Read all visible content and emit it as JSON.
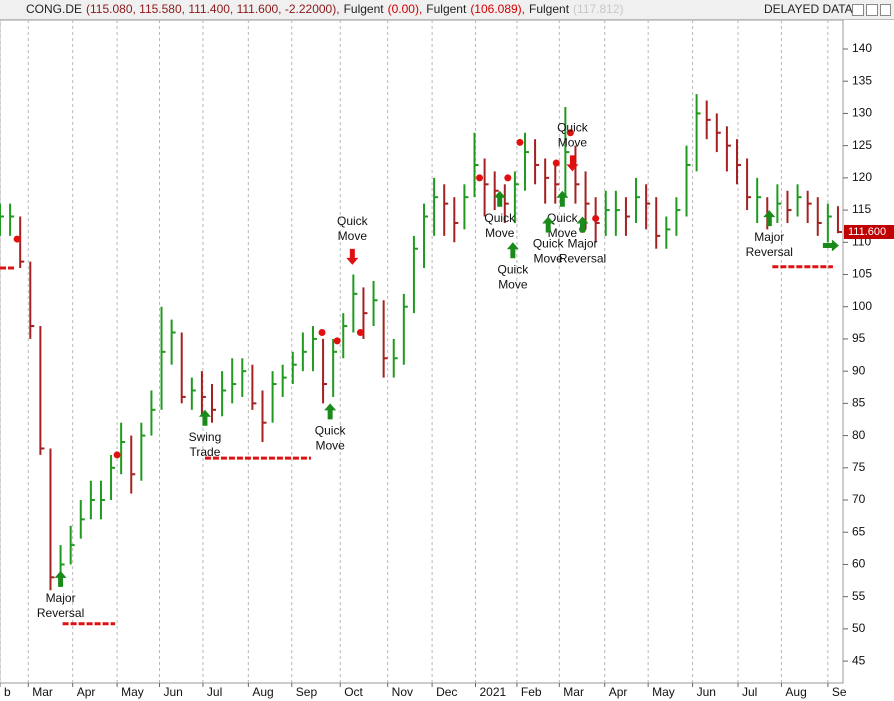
{
  "chart_data": {
    "type": "ohlc",
    "header": [
      {
        "text": "CONG.DE",
        "color": "#222222"
      },
      {
        "text": "(115.080, 115.580, 111.400, 111.600, -2.22000),",
        "color": "#8b1a1a"
      },
      {
        "text": "Fulgent",
        "color": "#222222"
      },
      {
        "text": "(0.00),",
        "color": "#d00000"
      },
      {
        "text": "Fulgent",
        "color": "#222222"
      },
      {
        "text": "(106.089),",
        "color": "#d00000"
      },
      {
        "text": "Fulgent",
        "color": "#222222"
      },
      {
        "text": "(117.812)",
        "color": "#c8c8c8"
      }
    ],
    "status": "DELAYED DATA",
    "x": [
      0,
      1,
      2,
      3,
      4,
      5,
      6,
      7,
      8,
      9,
      10,
      11,
      12,
      13,
      14,
      15,
      16,
      17,
      18,
      19,
      20,
      21,
      22,
      23,
      24,
      25,
      26,
      27,
      28,
      29,
      30,
      31,
      32,
      33,
      34,
      35,
      36,
      37,
      38,
      39,
      40,
      41,
      42,
      43,
      44,
      45,
      46,
      47,
      48,
      49,
      50,
      51,
      52,
      53,
      54,
      55,
      56,
      57,
      58,
      59,
      60,
      61,
      62,
      63,
      64,
      65,
      66,
      67,
      68,
      69,
      70,
      71,
      72,
      73,
      74,
      75,
      76,
      77,
      78,
      79,
      80,
      81,
      82,
      83
    ],
    "close": [
      114,
      114,
      107,
      97,
      78,
      58,
      60,
      63,
      67,
      70,
      70,
      75,
      79,
      74,
      80,
      84,
      93,
      96,
      86,
      87,
      86,
      84,
      87,
      88,
      90,
      85,
      82,
      88,
      89,
      91,
      93,
      95,
      88,
      93,
      97,
      102,
      99,
      101,
      92,
      92,
      100,
      109,
      114,
      117,
      116,
      113,
      117,
      122,
      119,
      118,
      116,
      119,
      124,
      122,
      120,
      119,
      124,
      119,
      116,
      113,
      115,
      115,
      114,
      117,
      116,
      111,
      112,
      115,
      122,
      130,
      129,
      127,
      125,
      122,
      117,
      117,
      114,
      116,
      115,
      117,
      116,
      113,
      114,
      111.6
    ],
    "high": [
      116,
      116,
      114,
      107,
      97,
      78,
      63,
      66,
      70,
      73,
      73,
      77,
      82,
      80,
      82,
      87,
      100,
      98,
      96,
      89,
      90,
      88,
      90,
      92,
      92,
      91,
      87,
      90,
      91,
      93,
      96,
      97,
      95,
      95,
      99,
      105,
      103,
      104,
      101,
      95,
      102,
      111,
      116,
      120,
      119,
      117,
      119,
      127,
      123,
      121,
      119,
      121,
      127,
      126,
      123,
      122,
      131,
      125,
      121,
      117,
      118,
      118,
      117,
      120,
      119,
      117,
      114,
      117,
      125,
      133,
      132,
      130,
      128,
      126,
      123,
      120,
      117,
      119,
      118,
      119,
      118,
      117,
      116,
      115.6
    ],
    "low": [
      111,
      111,
      106,
      95,
      77,
      56,
      57,
      60,
      64,
      67,
      67,
      70,
      74,
      71,
      73,
      80,
      84,
      91,
      85,
      84,
      83,
      82,
      83,
      85,
      86,
      84,
      79,
      82,
      86,
      88,
      90,
      90,
      85,
      86,
      92,
      96,
      95,
      97,
      89,
      89,
      91,
      99,
      106,
      111,
      111,
      110,
      112,
      117,
      114,
      115,
      113,
      113,
      118,
      119,
      116,
      116,
      117,
      116,
      112,
      110,
      111,
      111,
      111,
      113,
      112,
      109,
      109,
      111,
      114,
      121,
      126,
      124,
      121,
      119,
      115,
      113,
      112,
      113,
      113,
      114,
      113,
      111,
      110,
      111.4
    ],
    "up_color": "#1f9a1f",
    "down_color": "#a52020",
    "xlim": [
      0,
      83.5
    ],
    "xticks": [
      {
        "value": 0,
        "label": "b"
      },
      {
        "value": 2.8,
        "label": "Mar"
      },
      {
        "value": 7.2,
        "label": "Apr"
      },
      {
        "value": 11.6,
        "label": "May"
      },
      {
        "value": 15.8,
        "label": "Jun"
      },
      {
        "value": 20.1,
        "label": "Jul"
      },
      {
        "value": 24.6,
        "label": "Aug"
      },
      {
        "value": 28.9,
        "label": "Sep"
      },
      {
        "value": 33.7,
        "label": "Oct"
      },
      {
        "value": 38.4,
        "label": "Nov"
      },
      {
        "value": 42.8,
        "label": "Dec"
      },
      {
        "value": 47.1,
        "label": "2021"
      },
      {
        "value": 51.2,
        "label": "Feb"
      },
      {
        "value": 55.4,
        "label": "Mar"
      },
      {
        "value": 59.9,
        "label": "Apr"
      },
      {
        "value": 64.2,
        "label": "May"
      },
      {
        "value": 68.6,
        "label": "Jun"
      },
      {
        "value": 73.1,
        "label": "Jul"
      },
      {
        "value": 77.4,
        "label": "Aug"
      },
      {
        "value": 82,
        "label": "Se"
      }
    ],
    "ylim": [
      41.6,
      144.5
    ],
    "yticks": [
      45,
      50,
      55,
      60,
      65,
      70,
      75,
      80,
      85,
      90,
      95,
      100,
      105,
      110,
      115,
      120,
      125,
      130,
      135,
      140
    ],
    "grid": true,
    "last_price": {
      "value": 111.6,
      "label": "111.600"
    },
    "annotations": [
      {
        "text": [
          "Major",
          "Reversal"
        ],
        "x": 6,
        "y": 59,
        "direction": "up"
      },
      {
        "text": [
          "Swing",
          "Trade"
        ],
        "x": 20.3,
        "y": 84,
        "direction": "up"
      },
      {
        "text": [
          "Quick",
          "Move"
        ],
        "x": 32.7,
        "y": 85,
        "direction": "up"
      },
      {
        "text": [
          "Quick",
          "Move"
        ],
        "x": 34.9,
        "y": 106.5,
        "direction": "down"
      },
      {
        "text": [
          "Quick",
          "Move"
        ],
        "x": 49.5,
        "y": 118,
        "direction": "up"
      },
      {
        "text": [
          "Quick",
          "Move"
        ],
        "x": 50.8,
        "y": 110,
        "direction": "up"
      },
      {
        "text": [
          "Quick",
          "Move"
        ],
        "x": 55.7,
        "y": 118,
        "direction": "up"
      },
      {
        "text": [
          "Quick",
          "Move"
        ],
        "x": 54.3,
        "y": 114,
        "direction": "up"
      },
      {
        "text": [
          "Quick",
          "Move"
        ],
        "x": 56.7,
        "y": 121,
        "direction": "down"
      },
      {
        "text": [
          "Major",
          "Reversal"
        ],
        "x": 57.7,
        "y": 114,
        "direction": "up"
      },
      {
        "text": [
          "Major",
          "Reversal"
        ],
        "x": 76.2,
        "y": 115,
        "direction": "up"
      },
      {
        "x": 82.3,
        "y": 109.5,
        "direction": "right"
      }
    ],
    "levels": [
      {
        "value": 106,
        "x": [
          0,
          1.5
        ]
      },
      {
        "value": 50.8,
        "x": [
          6.2,
          11.4
        ]
      },
      {
        "value": 76.5,
        "x": [
          20.3,
          30.8
        ]
      },
      {
        "value": 106.2,
        "x": [
          76.5,
          82.5
        ]
      }
    ],
    "dots": [
      {
        "x": 1.7,
        "y": 110.5
      },
      {
        "x": 11.6,
        "y": 77
      },
      {
        "x": 31.9,
        "y": 96
      },
      {
        "x": 33.4,
        "y": 94.7
      },
      {
        "x": 35.7,
        "y": 96
      },
      {
        "x": 47.5,
        "y": 120
      },
      {
        "x": 50.3,
        "y": 120
      },
      {
        "x": 51.5,
        "y": 125.5
      },
      {
        "x": 55.1,
        "y": 122.3
      },
      {
        "x": 56.5,
        "y": 127
      },
      {
        "x": 57.7,
        "y": 112
      },
      {
        "x": 59,
        "y": 113.7
      }
    ],
    "signal_color": "#e01010",
    "arrow_up_color": "#1a8a1a",
    "arrow_down_color": "#e01010"
  }
}
